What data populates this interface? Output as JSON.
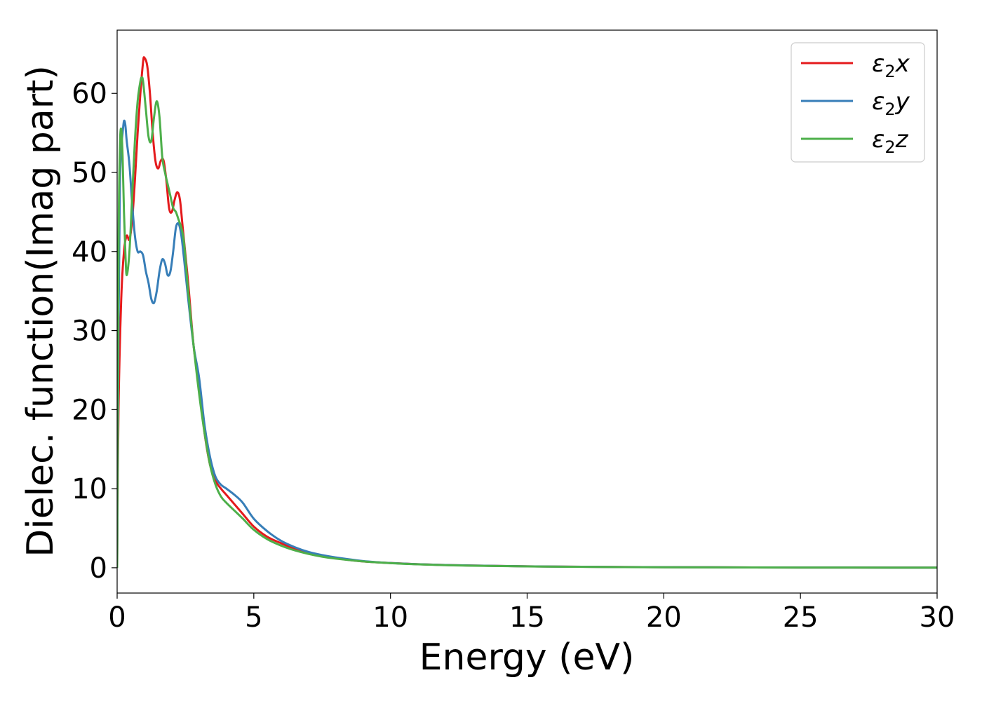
{
  "chart_data": {
    "type": "line",
    "title": "",
    "xlabel": "Energy (eV)",
    "ylabel": "Dielec. function(Imag part)",
    "xlim": [
      0,
      30
    ],
    "ylim": [
      -3.2,
      68
    ],
    "xticks": [
      0,
      5,
      10,
      15,
      20,
      25,
      30
    ],
    "xtick_labels": [
      "0",
      "5",
      "10",
      "15",
      "20",
      "25",
      "30"
    ],
    "yticks": [
      0,
      10,
      20,
      30,
      40,
      50,
      60
    ],
    "ytick_labels": [
      "0",
      "10",
      "20",
      "30",
      "40",
      "50",
      "60"
    ],
    "grid": false,
    "legend_position": "top-right",
    "series": [
      {
        "name": "ε₂x",
        "legend_main": "ε",
        "legend_sub": "2",
        "legend_suffix": "x",
        "color": "#e41a1c",
        "x": [
          0,
          0.05,
          0.15,
          0.25,
          0.35,
          0.45,
          0.55,
          0.65,
          0.75,
          0.85,
          0.95,
          1.0,
          1.1,
          1.2,
          1.3,
          1.4,
          1.5,
          1.6,
          1.7,
          1.8,
          1.9,
          2.0,
          2.1,
          2.2,
          2.3,
          2.4,
          2.6,
          2.8,
          3.0,
          3.2,
          3.4,
          3.6,
          3.8,
          4.0,
          4.3,
          4.6,
          5.0,
          5.5,
          6.0,
          6.5,
          7.0,
          7.5,
          8.0,
          9.0,
          10.0,
          11.0,
          12.0,
          13.0,
          15.0,
          17.0,
          20.0,
          25.0,
          30.0
        ],
        "y": [
          0,
          20,
          34,
          40,
          42,
          41.5,
          44,
          49,
          55,
          60,
          64,
          64.5,
          63.5,
          60,
          55,
          51.5,
          50.5,
          51.5,
          51.5,
          49,
          45.5,
          45,
          46.5,
          47.5,
          46.5,
          43,
          36,
          28,
          23,
          17,
          13,
          11,
          10,
          9.2,
          8,
          6.8,
          5.2,
          3.9,
          3.1,
          2.4,
          1.9,
          1.5,
          1.2,
          0.8,
          0.6,
          0.45,
          0.35,
          0.28,
          0.18,
          0.12,
          0.07,
          0.03,
          0.01
        ]
      },
      {
        "name": "ε₂y",
        "legend_main": "ε",
        "legend_sub": "2",
        "legend_suffix": "y",
        "color": "#377eb8",
        "x": [
          0,
          0.05,
          0.1,
          0.15,
          0.2,
          0.25,
          0.3,
          0.35,
          0.45,
          0.55,
          0.65,
          0.75,
          0.85,
          0.95,
          1.05,
          1.15,
          1.25,
          1.35,
          1.45,
          1.55,
          1.65,
          1.75,
          1.85,
          1.95,
          2.05,
          2.15,
          2.25,
          2.35,
          2.45,
          2.6,
          2.8,
          3.0,
          3.2,
          3.4,
          3.6,
          3.8,
          4.0,
          4.3,
          4.6,
          5.0,
          5.5,
          6.0,
          6.5,
          7.0,
          7.5,
          8.0,
          9.0,
          10.0,
          11.0,
          12.0,
          13.0,
          15.0,
          17.0,
          20.0,
          25.0,
          30.0
        ],
        "y": [
          0,
          30,
          48,
          53,
          55,
          56.5,
          56,
          54,
          51,
          46,
          42,
          40,
          40,
          39.5,
          37.5,
          36,
          34,
          33.5,
          35,
          37.5,
          39,
          38.5,
          37,
          37.5,
          40,
          43,
          43.5,
          42,
          39,
          34,
          28,
          24,
          18,
          14,
          11.5,
          10.5,
          10,
          9.2,
          8.2,
          6.2,
          4.6,
          3.4,
          2.6,
          2.0,
          1.6,
          1.3,
          0.85,
          0.6,
          0.45,
          0.35,
          0.28,
          0.18,
          0.12,
          0.07,
          0.03,
          0.01
        ]
      },
      {
        "name": "ε₂z",
        "legend_main": "ε",
        "legend_sub": "2",
        "legend_suffix": "z",
        "color": "#4daf4a",
        "x": [
          0,
          0.05,
          0.1,
          0.15,
          0.2,
          0.25,
          0.3,
          0.35,
          0.45,
          0.55,
          0.65,
          0.75,
          0.85,
          0.9,
          0.95,
          1.05,
          1.15,
          1.25,
          1.35,
          1.45,
          1.55,
          1.65,
          1.75,
          1.85,
          1.95,
          2.05,
          2.15,
          2.25,
          2.35,
          2.45,
          2.6,
          2.8,
          3.0,
          3.2,
          3.4,
          3.6,
          3.8,
          4.0,
          4.3,
          4.6,
          5.0,
          5.5,
          6.0,
          6.5,
          7.0,
          7.5,
          8.0,
          9.0,
          10.0,
          11.0,
          12.0,
          13.0,
          15.0,
          17.0,
          20.0,
          25.0,
          30.0
        ],
        "y": [
          0,
          40,
          53,
          55.5,
          52,
          45,
          40,
          37,
          40,
          47,
          54,
          59,
          61.5,
          62,
          61.5,
          58,
          54.5,
          54,
          57,
          59,
          57,
          52,
          50,
          48.5,
          47,
          45.5,
          45,
          44,
          43,
          41,
          35,
          28,
          22,
          17,
          13,
          10.5,
          9,
          8.2,
          7.2,
          6.2,
          4.8,
          3.6,
          2.8,
          2.2,
          1.75,
          1.4,
          1.15,
          0.8,
          0.58,
          0.43,
          0.33,
          0.26,
          0.17,
          0.11,
          0.06,
          0.03,
          0.01
        ]
      }
    ]
  }
}
